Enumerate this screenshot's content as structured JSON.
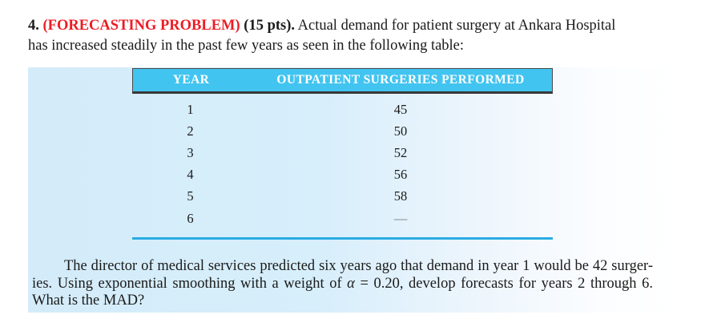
{
  "title": {
    "number": "4. ",
    "tag": "(FORECASTING PROBLEM)",
    "points": " (15 pts).",
    "line1_rest": " Actual demand for patient surgery at Ankara Hospital",
    "line2": "has increased steadily in the past few years as seen in the following table:"
  },
  "table": {
    "col_year": "YEAR",
    "col_surgeries": "OUTPATIENT SURGERIES PERFORMED",
    "rows": [
      {
        "year": "1",
        "surgeries": "45"
      },
      {
        "year": "2",
        "surgeries": "50"
      },
      {
        "year": "3",
        "surgeries": "52"
      },
      {
        "year": "4",
        "surgeries": "56"
      },
      {
        "year": "5",
        "surgeries": "58"
      },
      {
        "year": "6",
        "surgeries": "—"
      }
    ]
  },
  "question": {
    "line1": "The director of medical services predicted six years ago that demand in year 1 would be 42 surger-",
    "line2_pre": "ies. Using exponential smoothing with a weight of ",
    "line2_alpha": "α",
    "line2_post": " = 0.20, develop forecasts for years 2 through 6.",
    "line3": "What is the MAD?"
  },
  "colors": {
    "tag_red": "#ed1c24",
    "table_header_cyan": "#42c4f0",
    "table_rule_dark": "#383838",
    "table_footer_line_cyan": "#2aace3",
    "panel_blue": "#d5edfa"
  }
}
